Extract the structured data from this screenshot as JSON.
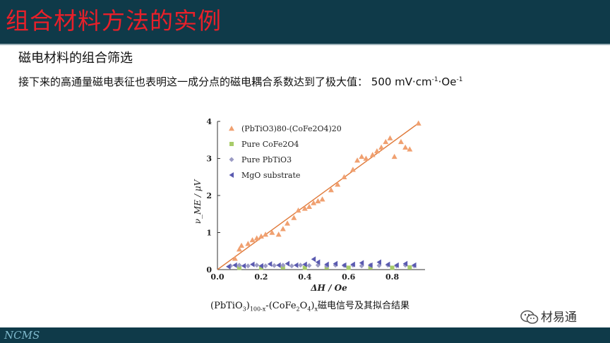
{
  "slide": {
    "title": "组合材料方法的实例",
    "subtitle": "磁电材料的组合筛选",
    "description_prefix": "接下来的高通量磁电表征也表明这一成分点的磁电耦合系数达到了极大值：  500 mV·cm",
    "description_exp1": "-1",
    "description_mid": "·Oe",
    "description_exp2": "-1",
    "caption": {
      "p1": "(PbTiO",
      "s1": "3",
      "p2": ")",
      "s2": "100-x",
      "p3": "-(CoFe",
      "s3": "2",
      "p4": "O",
      "s4": "4",
      "p5": ")",
      "s5": "x",
      "p6": "磁电信号及其拟合结果"
    },
    "footer_logo": "NCMS",
    "wechat_label": "材易通"
  },
  "colors": {
    "header_bg": "#0f3a49",
    "title_red": "#e8202a",
    "triangle": "#f0a070",
    "square": "#a8cc6a",
    "diamond": "#9b9bc4",
    "mgo": "#5a5ab0",
    "fit_line": "#e07a3a"
  },
  "chart_data": {
    "type": "scatter",
    "xlabel": "ΔH / Oe",
    "ylabel": "ν_ME / μV",
    "xlim": [
      0,
      0.95
    ],
    "ylim": [
      0,
      4
    ],
    "x_ticks": [
      "0.0",
      "0.2",
      "0.4",
      "0.6",
      "0.8"
    ],
    "y_ticks": [
      "0",
      "1",
      "2",
      "3",
      "4"
    ],
    "legend": [
      {
        "label": "(PbTiO3)80-(CoFe2O4)20",
        "marker": "triangle"
      },
      {
        "label": "Pure CoFe2O4",
        "marker": "square"
      },
      {
        "label": "Pure PbTiO3",
        "marker": "diamond"
      },
      {
        "label": "MgO substrate",
        "marker": "left-triangle"
      }
    ],
    "legend_position": "top-left",
    "fit_line": {
      "x": [
        0.0,
        0.92
      ],
      "y": [
        0.0,
        3.95
      ]
    },
    "series": [
      {
        "marker": "triangle",
        "points": [
          [
            0.08,
            0.3
          ],
          [
            0.1,
            0.55
          ],
          [
            0.11,
            0.65
          ],
          [
            0.14,
            0.7
          ],
          [
            0.16,
            0.8
          ],
          [
            0.18,
            0.85
          ],
          [
            0.2,
            0.9
          ],
          [
            0.22,
            0.95
          ],
          [
            0.25,
            1.0
          ],
          [
            0.28,
            0.95
          ],
          [
            0.3,
            1.1
          ],
          [
            0.32,
            1.25
          ],
          [
            0.35,
            1.4
          ],
          [
            0.37,
            1.6
          ],
          [
            0.4,
            1.65
          ],
          [
            0.42,
            1.7
          ],
          [
            0.44,
            1.8
          ],
          [
            0.46,
            1.85
          ],
          [
            0.48,
            1.9
          ],
          [
            0.52,
            2.15
          ],
          [
            0.55,
            2.3
          ],
          [
            0.58,
            2.5
          ],
          [
            0.62,
            2.7
          ],
          [
            0.64,
            2.95
          ],
          [
            0.66,
            3.05
          ],
          [
            0.68,
            3.0
          ],
          [
            0.71,
            3.1
          ],
          [
            0.73,
            3.2
          ],
          [
            0.75,
            3.3
          ],
          [
            0.77,
            3.45
          ],
          [
            0.79,
            3.55
          ],
          [
            0.81,
            3.05
          ],
          [
            0.84,
            3.45
          ],
          [
            0.86,
            3.3
          ],
          [
            0.88,
            3.25
          ],
          [
            0.92,
            3.95
          ]
        ]
      },
      {
        "marker": "square",
        "points": [
          [
            0.1,
            0.05
          ],
          [
            0.2,
            0.05
          ],
          [
            0.3,
            0.06
          ],
          [
            0.4,
            0.05
          ],
          [
            0.5,
            0.06
          ],
          [
            0.6,
            0.05
          ],
          [
            0.7,
            0.06
          ],
          [
            0.8,
            0.05
          ],
          [
            0.88,
            0.06
          ]
        ]
      },
      {
        "marker": "diamond",
        "points": [
          [
            0.06,
            0.1
          ],
          [
            0.1,
            0.12
          ],
          [
            0.14,
            0.1
          ],
          [
            0.18,
            0.12
          ],
          [
            0.22,
            0.1
          ],
          [
            0.26,
            0.11
          ],
          [
            0.3,
            0.12
          ],
          [
            0.34,
            0.1
          ],
          [
            0.38,
            0.12
          ],
          [
            0.42,
            0.11
          ],
          [
            0.46,
            0.12
          ],
          [
            0.5,
            0.1
          ],
          [
            0.54,
            0.12
          ],
          [
            0.58,
            0.11
          ],
          [
            0.62,
            0.12
          ],
          [
            0.66,
            0.1
          ],
          [
            0.7,
            0.12
          ],
          [
            0.74,
            0.11
          ],
          [
            0.78,
            0.12
          ],
          [
            0.82,
            0.1
          ],
          [
            0.86,
            0.12
          ],
          [
            0.9,
            0.1
          ]
        ]
      },
      {
        "marker": "left-triangle",
        "points": [
          [
            0.05,
            0.08
          ],
          [
            0.08,
            0.12
          ],
          [
            0.12,
            0.1
          ],
          [
            0.16,
            0.14
          ],
          [
            0.2,
            0.1
          ],
          [
            0.24,
            0.15
          ],
          [
            0.28,
            0.12
          ],
          [
            0.32,
            0.16
          ],
          [
            0.36,
            0.12
          ],
          [
            0.4,
            0.14
          ],
          [
            0.44,
            0.28
          ],
          [
            0.46,
            0.2
          ],
          [
            0.5,
            0.14
          ],
          [
            0.54,
            0.16
          ],
          [
            0.58,
            0.12
          ],
          [
            0.62,
            0.14
          ],
          [
            0.66,
            0.18
          ],
          [
            0.7,
            0.12
          ],
          [
            0.74,
            0.2
          ],
          [
            0.78,
            0.14
          ],
          [
            0.82,
            0.12
          ],
          [
            0.86,
            0.16
          ],
          [
            0.9,
            0.12
          ]
        ]
      }
    ]
  }
}
